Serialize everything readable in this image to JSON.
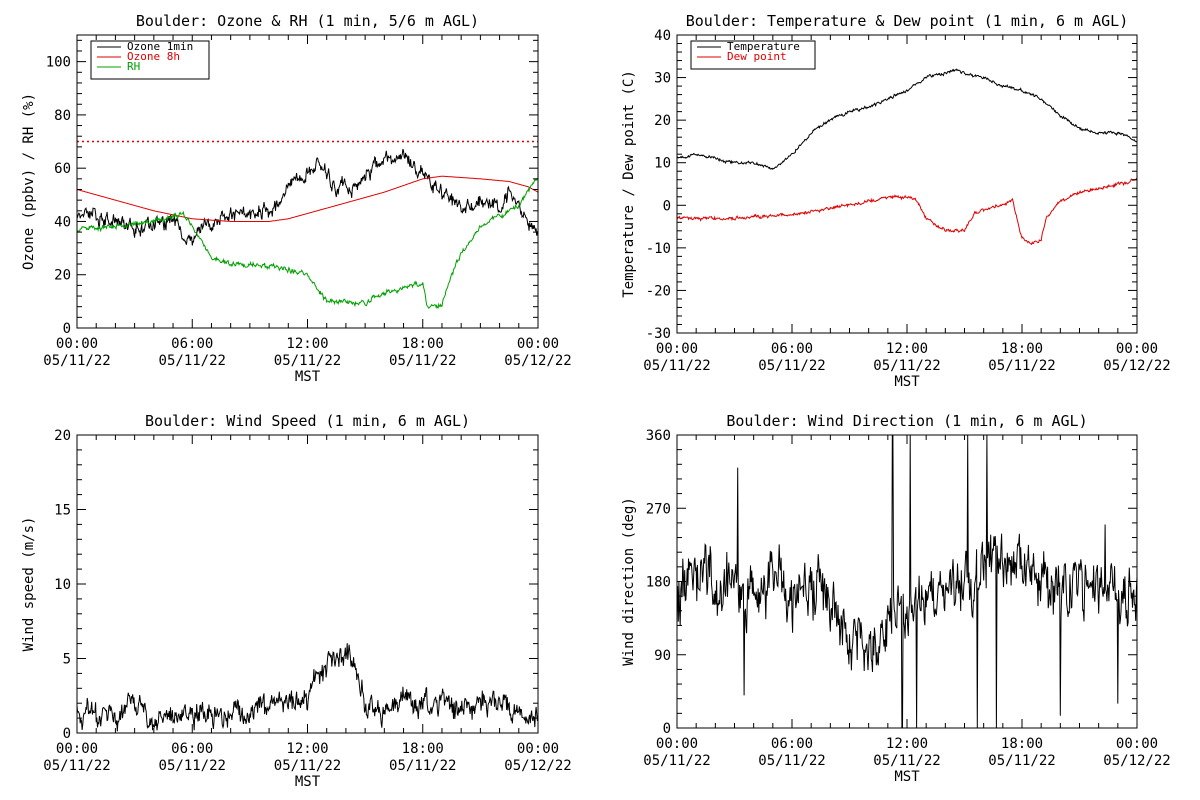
{
  "colors": {
    "black": "#000000",
    "red": "#e00000",
    "green": "#00a000"
  },
  "x_tick_times": [
    "00:00",
    "06:00",
    "12:00",
    "18:00",
    "00:00"
  ],
  "x_tick_dates": [
    "05/11/22",
    "05/11/22",
    "05/11/22",
    "05/11/22",
    "05/12/22"
  ],
  "x_label": "MST",
  "chart_data": [
    {
      "id": "ozone",
      "type": "line",
      "title": "Boulder: Ozone & RH (1 min, 5/6 m AGL)",
      "ylabel": "Ozone (ppbv) / RH (%)",
      "xlabel": "MST",
      "xlim": [
        "2022-05-11 00:00",
        "2022-05-12 00:00"
      ],
      "ylim": [
        0,
        110
      ],
      "yticks": [
        0,
        20,
        40,
        60,
        80,
        100
      ],
      "legend_position": "top-left",
      "reference_lines": [
        {
          "y": 70,
          "style": "dotted",
          "color": "#e00000"
        }
      ],
      "series": [
        {
          "name": "Ozone 1min",
          "color": "#000000",
          "noise": 2.5,
          "points": [
            [
              "00:00",
              43
            ],
            [
              "00:30",
              45
            ],
            [
              "01:00",
              42
            ],
            [
              "01:30",
              40
            ],
            [
              "02:00",
              41
            ],
            [
              "03:00",
              37
            ],
            [
              "04:00",
              40
            ],
            [
              "05:00",
              40
            ],
            [
              "05:30",
              36
            ],
            [
              "06:00",
              32
            ],
            [
              "06:30",
              38
            ],
            [
              "07:00",
              40
            ],
            [
              "08:00",
              42
            ],
            [
              "09:00",
              44
            ],
            [
              "10:00",
              44
            ],
            [
              "10:30",
              47
            ],
            [
              "11:00",
              55
            ],
            [
              "11:30",
              56
            ],
            [
              "12:00",
              58
            ],
            [
              "12:30",
              61
            ],
            [
              "13:00",
              58
            ],
            [
              "13:30",
              53
            ],
            [
              "14:30",
              53
            ],
            [
              "15:00",
              55
            ],
            [
              "15:30",
              60
            ],
            [
              "16:00",
              64
            ],
            [
              "17:00",
              65
            ],
            [
              "18:00",
              57
            ],
            [
              "18:30",
              55
            ],
            [
              "19:30",
              48
            ],
            [
              "20:00",
              45
            ],
            [
              "20:30",
              46
            ],
            [
              "21:00",
              48
            ],
            [
              "22:00",
              45
            ],
            [
              "22:30",
              50
            ],
            [
              "23:00",
              47
            ],
            [
              "23:30",
              41
            ],
            [
              "24:00",
              38
            ]
          ]
        },
        {
          "name": "Ozone 8h",
          "color": "#e00000",
          "noise": 0,
          "points": [
            [
              "00:00",
              52
            ],
            [
              "02:00",
              48
            ],
            [
              "04:00",
              44
            ],
            [
              "06:00",
              41
            ],
            [
              "08:00",
              40
            ],
            [
              "10:00",
              40
            ],
            [
              "11:00",
              41
            ],
            [
              "12:00",
              43
            ],
            [
              "14:00",
              47
            ],
            [
              "16:00",
              51
            ],
            [
              "18:00",
              56
            ],
            [
              "19:00",
              57
            ],
            [
              "21:00",
              56
            ],
            [
              "22:30",
              55
            ],
            [
              "23:30",
              53
            ],
            [
              "24:00",
              51
            ]
          ]
        },
        {
          "name": "RH",
          "color": "#00a000",
          "noise": 0.8,
          "points": [
            [
              "00:00",
              37
            ],
            [
              "02:00",
              38
            ],
            [
              "04:00",
              40
            ],
            [
              "05:00",
              42
            ],
            [
              "05:30",
              43
            ],
            [
              "06:00",
              38
            ],
            [
              "07:00",
              26
            ],
            [
              "08:00",
              24
            ],
            [
              "10:00",
              23
            ],
            [
              "11:00",
              22
            ],
            [
              "12:00",
              20
            ],
            [
              "13:00",
              10
            ],
            [
              "15:00",
              9
            ],
            [
              "15:30",
              12
            ],
            [
              "17:00",
              15
            ],
            [
              "18:00",
              17
            ],
            [
              "18:15",
              8
            ],
            [
              "19:00",
              9
            ],
            [
              "19:30",
              20
            ],
            [
              "20:00",
              28
            ],
            [
              "21:00",
              38
            ],
            [
              "22:00",
              42
            ],
            [
              "23:00",
              46
            ],
            [
              "23:30",
              52
            ],
            [
              "24:00",
              56
            ]
          ]
        }
      ]
    },
    {
      "id": "temp",
      "type": "line",
      "title": "Boulder: Temperature & Dew point (1 min, 6 m AGL)",
      "ylabel": "Temperature / Dew point (C)",
      "xlabel": "MST",
      "xlim": [
        "2022-05-11 00:00",
        "2022-05-12 00:00"
      ],
      "ylim": [
        -30,
        40
      ],
      "yticks": [
        -30,
        -20,
        -10,
        0,
        10,
        20,
        30,
        40
      ],
      "legend_position": "top-left",
      "series": [
        {
          "name": "Temperature",
          "color": "#000000",
          "noise": 0.3,
          "points": [
            [
              "00:00",
              11
            ],
            [
              "01:00",
              12
            ],
            [
              "02:00",
              11
            ],
            [
              "03:00",
              10
            ],
            [
              "04:00",
              10
            ],
            [
              "05:00",
              8.5
            ],
            [
              "06:00",
              12
            ],
            [
              "07:00",
              17
            ],
            [
              "08:00",
              20
            ],
            [
              "09:00",
              22
            ],
            [
              "10:00",
              23
            ],
            [
              "11:00",
              25
            ],
            [
              "12:00",
              27
            ],
            [
              "13:00",
              30
            ],
            [
              "14:00",
              31
            ],
            [
              "14:30",
              32
            ],
            [
              "15:00",
              31
            ],
            [
              "16:00",
              30
            ],
            [
              "17:00",
              28
            ],
            [
              "18:00",
              27
            ],
            [
              "19:00",
              25
            ],
            [
              "20:00",
              21
            ],
            [
              "21:00",
              18
            ],
            [
              "22:00",
              17
            ],
            [
              "23:00",
              17
            ],
            [
              "24:00",
              15
            ]
          ]
        },
        {
          "name": "Dew point",
          "color": "#e00000",
          "noise": 0.35,
          "points": [
            [
              "00:00",
              -3
            ],
            [
              "03:00",
              -3
            ],
            [
              "05:00",
              -2.5
            ],
            [
              "06:00",
              -2
            ],
            [
              "07:00",
              -1.5
            ],
            [
              "08:00",
              -1
            ],
            [
              "09:00",
              0
            ],
            [
              "10:00",
              1
            ],
            [
              "11:00",
              2
            ],
            [
              "12:00",
              2
            ],
            [
              "12:30",
              1
            ],
            [
              "13:00",
              -3
            ],
            [
              "14:00",
              -6
            ],
            [
              "15:00",
              -6
            ],
            [
              "15:30",
              -2
            ],
            [
              "16:00",
              -1
            ],
            [
              "17:00",
              0
            ],
            [
              "17:30",
              1
            ],
            [
              "18:00",
              -8
            ],
            [
              "18:30",
              -9
            ],
            [
              "19:00",
              -8
            ],
            [
              "19:15",
              -3
            ],
            [
              "20:00",
              1
            ],
            [
              "21:00",
              3
            ],
            [
              "22:00",
              4
            ],
            [
              "23:00",
              5
            ],
            [
              "24:00",
              6
            ]
          ]
        }
      ]
    },
    {
      "id": "wspd",
      "type": "line",
      "title": "Boulder: Wind Speed (1 min, 6 m AGL)",
      "ylabel": "Wind speed (m/s)",
      "xlabel": "MST",
      "xlim": [
        "2022-05-11 00:00",
        "2022-05-12 00:00"
      ],
      "ylim": [
        0,
        20
      ],
      "yticks": [
        0,
        5,
        10,
        15,
        20
      ],
      "series": [
        {
          "name": "",
          "color": "#000000",
          "noise": 0.7,
          "clamp": [
            0,
            20
          ],
          "points": [
            [
              "00:00",
              1.2
            ],
            [
              "02:00",
              1.3
            ],
            [
              "03:00",
              2.0
            ],
            [
              "04:00",
              0.8
            ],
            [
              "06:00",
              1.3
            ],
            [
              "08:00",
              1.0
            ],
            [
              "10:00",
              1.8
            ],
            [
              "11:00",
              2.0
            ],
            [
              "12:00",
              2.5
            ],
            [
              "13:00",
              4.5
            ],
            [
              "14:00",
              5.5
            ],
            [
              "14:30",
              4
            ],
            [
              "15:00",
              2
            ],
            [
              "16:00",
              1.5
            ],
            [
              "17:00",
              2.5
            ],
            [
              "18:00",
              2
            ],
            [
              "19:00",
              2.2
            ],
            [
              "20:00",
              1.5
            ],
            [
              "21:00",
              1.8
            ],
            [
              "22:00",
              2.2
            ],
            [
              "23:00",
              1.3
            ],
            [
              "24:00",
              1.0
            ]
          ]
        }
      ]
    },
    {
      "id": "wdir",
      "type": "line",
      "title": "Boulder: Wind Direction (1 min, 6 m AGL)",
      "ylabel": "Wind direction (deg)",
      "xlabel": "MST",
      "xlim": [
        "2022-05-11 00:00",
        "2022-05-12 00:00"
      ],
      "ylim": [
        0,
        360
      ],
      "yticks": [
        0,
        90,
        180,
        270,
        360
      ],
      "series": [
        {
          "name": "",
          "color": "#000000",
          "noise": 30,
          "clamp": [
            0,
            360
          ],
          "points": [
            [
              "00:00",
              170
            ],
            [
              "01:00",
              200
            ],
            [
              "02:00",
              175
            ],
            [
              "03:00",
              180
            ],
            [
              "04:00",
              150
            ],
            [
              "05:00",
              190
            ],
            [
              "06:00",
              160
            ],
            [
              "07:00",
              180
            ],
            [
              "08:00",
              150
            ],
            [
              "09:00",
              110
            ],
            [
              "10:00",
              100
            ],
            [
              "11:00",
              130
            ],
            [
              "12:00",
              150
            ],
            [
              "13:00",
              160
            ],
            [
              "14:00",
              175
            ],
            [
              "15:00",
              180
            ],
            [
              "16:00",
              200
            ],
            [
              "17:00",
              215
            ],
            [
              "18:00",
              200
            ],
            [
              "19:00",
              185
            ],
            [
              "20:00",
              180
            ],
            [
              "21:00",
              175
            ],
            [
              "22:00",
              170
            ],
            [
              "23:00",
              165
            ],
            [
              "24:00",
              170
            ]
          ],
          "spikes": [
            [
              "03:10",
              320
            ],
            [
              "03:30",
              40
            ],
            [
              "11:15",
              360
            ],
            [
              "11:45",
              0
            ],
            [
              "12:10",
              360
            ],
            [
              "12:30",
              0
            ],
            [
              "15:10",
              360
            ],
            [
              "15:40",
              0
            ],
            [
              "16:10",
              360
            ],
            [
              "16:40",
              0
            ],
            [
              "20:00",
              15
            ],
            [
              "22:20",
              250
            ],
            [
              "23:00",
              30
            ]
          ]
        }
      ]
    }
  ]
}
